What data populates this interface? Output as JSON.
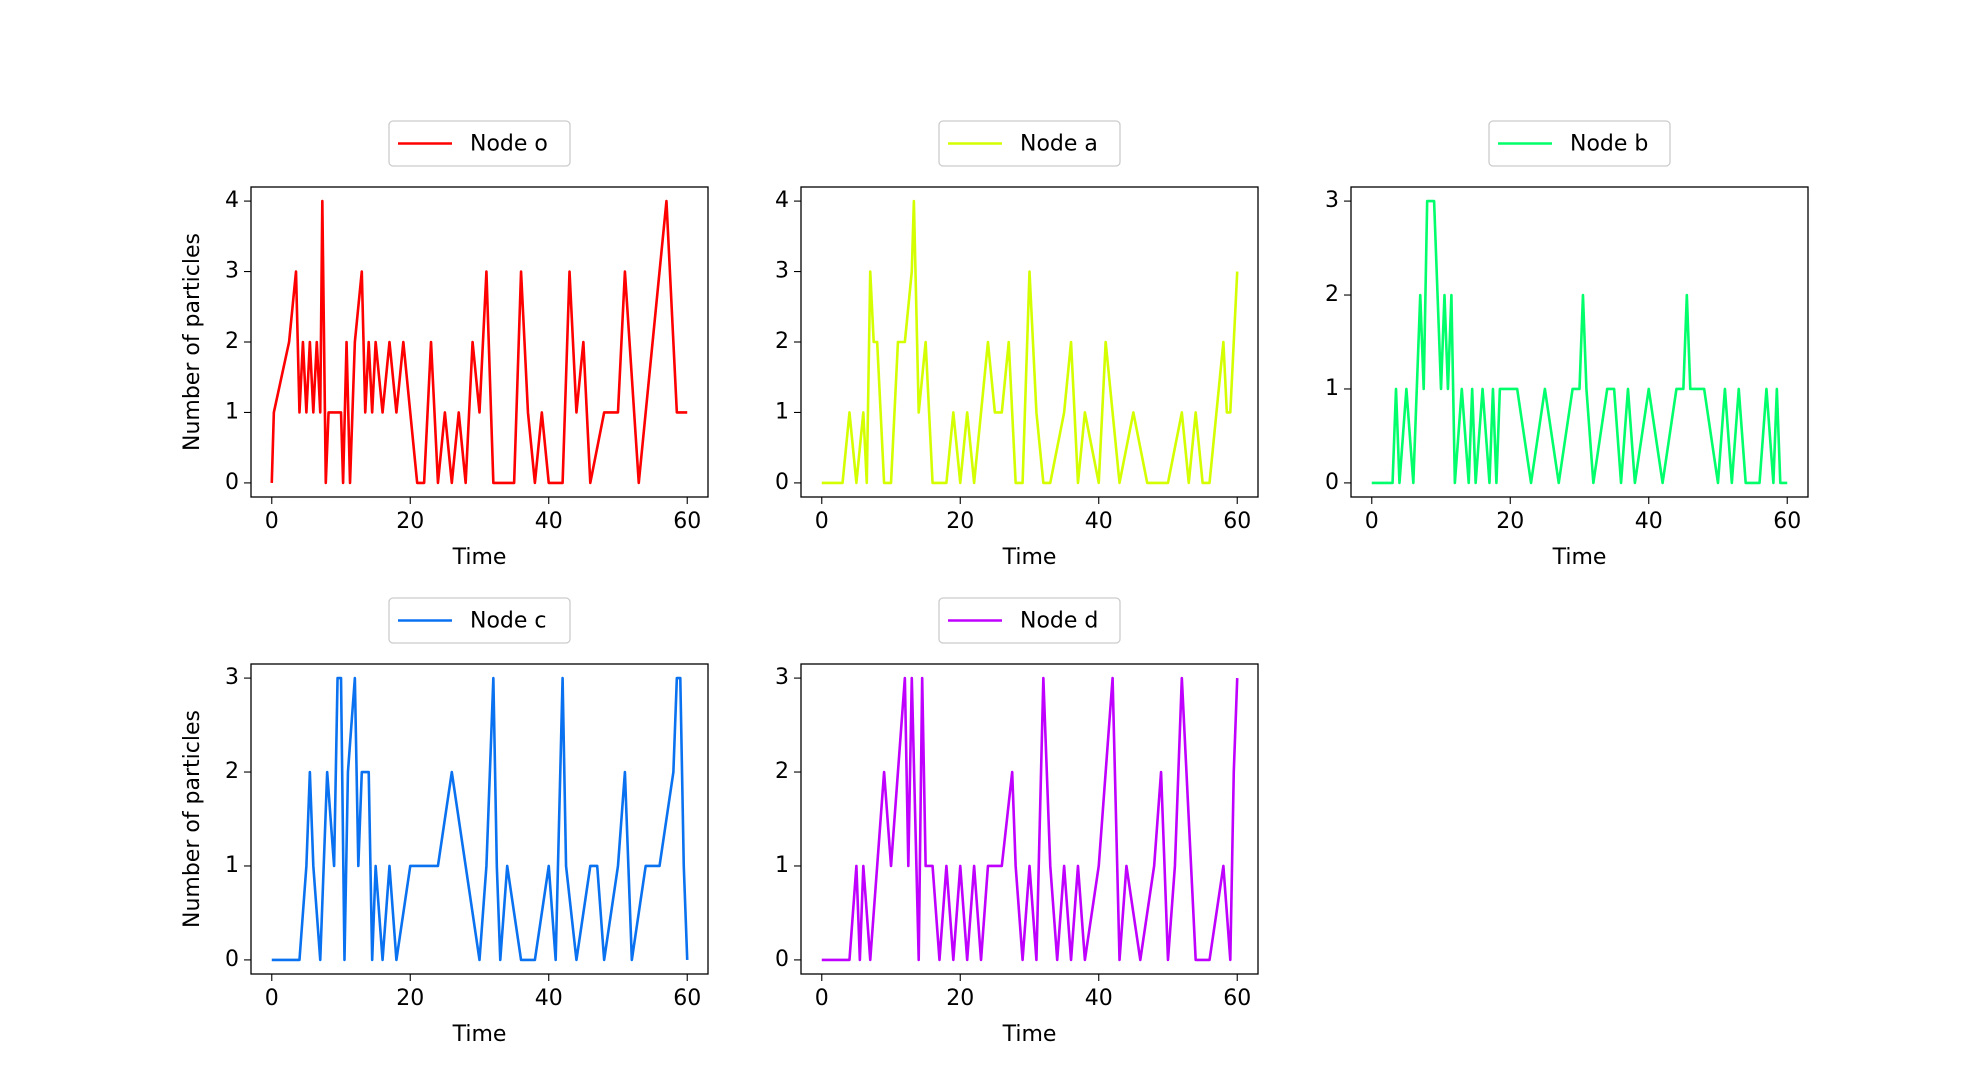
{
  "chart_data": [
    {
      "type": "line",
      "xlabel": "Time",
      "ylabel": "Number of particles",
      "legend": "top",
      "xlim": [
        -3,
        63
      ],
      "ylim": [
        -0.2,
        4.2
      ],
      "xticks": [
        0,
        20,
        40,
        60
      ],
      "yticks": [
        0,
        1,
        2,
        3,
        4
      ],
      "x": [
        0,
        0.3,
        2.5,
        3.5,
        4,
        4.5,
        5,
        5.5,
        6,
        6.5,
        7,
        7.3,
        7.8,
        8.2,
        10,
        10.3,
        10.8,
        11.3,
        12,
        13,
        13.5,
        14,
        14.5,
        15,
        16,
        17,
        18,
        19,
        20,
        21,
        22,
        23,
        24,
        25,
        26,
        27,
        28,
        29,
        30,
        31,
        32,
        35,
        36,
        37,
        38,
        39,
        40,
        42,
        43,
        44,
        45,
        46,
        48,
        50,
        51,
        53,
        55,
        57,
        58.5,
        60
      ],
      "series": [
        {
          "name": "Node o",
          "color": "#ff0000",
          "values": [
            0,
            1,
            2,
            3,
            1,
            2,
            1,
            2,
            1,
            2,
            1,
            4,
            0,
            1,
            1,
            0,
            2,
            0,
            2,
            3,
            1,
            2,
            1,
            2,
            1,
            2,
            1,
            2,
            1,
            0,
            0,
            2,
            0,
            1,
            0,
            1,
            0,
            2,
            1,
            3,
            0,
            0,
            3,
            1,
            0,
            1,
            0,
            0,
            3,
            1,
            2,
            0,
            1,
            1,
            3,
            0,
            2,
            4,
            1,
            1
          ]
        }
      ]
    },
    {
      "type": "line",
      "xlabel": "Time",
      "legend": "top",
      "xlim": [
        -3,
        63
      ],
      "ylim": [
        -0.2,
        4.2
      ],
      "xticks": [
        0,
        20,
        40,
        60
      ],
      "yticks": [
        0,
        1,
        2,
        3,
        4
      ],
      "x": [
        0,
        3,
        4,
        5,
        6,
        6.5,
        7,
        7.5,
        8,
        9,
        10,
        11,
        12,
        13,
        13.3,
        14,
        15,
        16,
        17,
        18,
        19,
        20,
        21,
        22,
        23,
        24,
        25,
        26,
        27,
        28,
        29,
        30,
        31,
        32,
        33,
        35,
        36,
        37,
        38,
        40,
        41,
        42,
        43,
        45,
        47,
        50,
        52,
        53,
        54,
        55,
        56,
        57,
        58,
        58.5,
        59,
        60
      ],
      "series": [
        {
          "name": "Node a",
          "color": "#d4ff00",
          "values": [
            0,
            0,
            1,
            0,
            1,
            0,
            3,
            2,
            2,
            0,
            0,
            2,
            2,
            3,
            4,
            1,
            2,
            0,
            0,
            0,
            1,
            0,
            1,
            0,
            1,
            2,
            1,
            1,
            2,
            0,
            0,
            3,
            1,
            0,
            0,
            1,
            2,
            0,
            1,
            0,
            2,
            1,
            0,
            1,
            0,
            0,
            1,
            0,
            1,
            0,
            0,
            1,
            2,
            1,
            1,
            3
          ]
        }
      ]
    },
    {
      "type": "line",
      "xlabel": "Time",
      "legend": "top",
      "xlim": [
        -3,
        63
      ],
      "ylim": [
        -0.15,
        3.15
      ],
      "xticks": [
        0,
        20,
        40,
        60
      ],
      "yticks": [
        0,
        1,
        2,
        3
      ],
      "x": [
        0,
        3,
        3.5,
        4,
        5,
        6,
        7,
        7.5,
        8,
        9,
        10,
        10.5,
        11,
        11.5,
        12,
        13,
        14,
        14.5,
        15,
        16,
        17,
        17.5,
        18,
        18.5,
        19,
        21,
        23,
        25,
        27,
        29,
        30,
        30.5,
        31,
        32,
        34,
        35,
        36,
        37,
        38,
        40,
        42,
        44,
        45,
        45.5,
        46,
        48,
        50,
        51,
        52,
        53,
        54,
        55,
        56,
        57,
        58,
        58.5,
        59,
        60
      ],
      "series": [
        {
          "name": "Node b",
          "color": "#00ff6a",
          "values": [
            0,
            0,
            1,
            0,
            1,
            0,
            2,
            1,
            3,
            3,
            1,
            2,
            1,
            2,
            0,
            1,
            0,
            1,
            0,
            1,
            0,
            1,
            0,
            1,
            1,
            1,
            0,
            1,
            0,
            1,
            1,
            2,
            1,
            0,
            1,
            1,
            0,
            1,
            0,
            1,
            0,
            1,
            1,
            2,
            1,
            1,
            0,
            1,
            0,
            1,
            0,
            0,
            0,
            1,
            0,
            1,
            0,
            0
          ]
        }
      ]
    },
    {
      "type": "line",
      "xlabel": "Time",
      "ylabel": "Number of particles",
      "legend": "top",
      "xlim": [
        -3,
        63
      ],
      "ylim": [
        -0.15,
        3.15
      ],
      "xticks": [
        0,
        20,
        40,
        60
      ],
      "yticks": [
        0,
        1,
        2,
        3
      ],
      "x": [
        0,
        4,
        5,
        5.5,
        6,
        7,
        8,
        9,
        9.5,
        10,
        10.5,
        11,
        12,
        12.5,
        13,
        14,
        14.5,
        15,
        16,
        17,
        18,
        20,
        22,
        24,
        26,
        28,
        30,
        31,
        32,
        32.5,
        33,
        34,
        36,
        38,
        40,
        41,
        42,
        42.5,
        44,
        46,
        47,
        48,
        50,
        51,
        52,
        54,
        56,
        58,
        58.5,
        59,
        59.5,
        60
      ],
      "series": [
        {
          "name": "Node c",
          "color": "#0a72f0",
          "values": [
            0,
            0,
            1,
            2,
            1,
            0,
            2,
            1,
            3,
            3,
            0,
            2,
            3,
            1,
            2,
            2,
            0,
            1,
            0,
            1,
            0,
            1,
            1,
            1,
            2,
            1,
            0,
            1,
            3,
            1,
            0,
            1,
            0,
            0,
            1,
            0,
            3,
            1,
            0,
            1,
            1,
            0,
            1,
            2,
            0,
            1,
            1,
            2,
            3,
            3,
            1,
            0
          ]
        }
      ]
    },
    {
      "type": "line",
      "xlabel": "Time",
      "legend": "top",
      "xlim": [
        -3,
        63
      ],
      "ylim": [
        -0.15,
        3.15
      ],
      "xticks": [
        0,
        20,
        40,
        60
      ],
      "yticks": [
        0,
        1,
        2,
        3
      ],
      "x": [
        0,
        4,
        5,
        5.5,
        6,
        7,
        8,
        9,
        10,
        11,
        12,
        12.5,
        13,
        14,
        14.5,
        15,
        16,
        17,
        18,
        19,
        20,
        21,
        22,
        23,
        24,
        26,
        27.5,
        28,
        29,
        30,
        31,
        32,
        33,
        34,
        35,
        36,
        37,
        38,
        40,
        42,
        43,
        44,
        46,
        48,
        49,
        50,
        51,
        52,
        54,
        56,
        58,
        59,
        59.5,
        60
      ],
      "series": [
        {
          "name": "Node d",
          "color": "#bf00ff",
          "values": [
            0,
            0,
            1,
            0,
            1,
            0,
            1,
            2,
            1,
            2,
            3,
            1,
            3,
            0,
            3,
            1,
            1,
            0,
            1,
            0,
            1,
            0,
            1,
            0,
            1,
            1,
            2,
            1,
            0,
            1,
            0,
            3,
            1,
            0,
            1,
            0,
            1,
            0,
            1,
            3,
            0,
            1,
            0,
            1,
            2,
            0,
            1,
            3,
            0,
            0,
            1,
            0,
            2,
            3
          ]
        }
      ]
    }
  ]
}
